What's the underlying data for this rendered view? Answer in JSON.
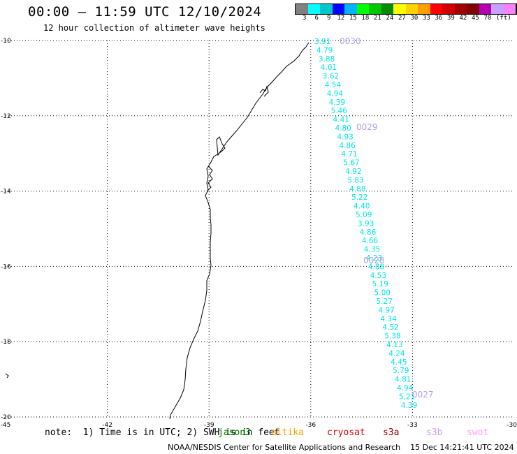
{
  "header": {
    "title": "00:00 – 11:59 UTC 12/10/2024",
    "subtitle": "12 hour collection of altimeter wave heights"
  },
  "legend": {
    "colors": [
      "#808080",
      "#00ffff",
      "#00c8c8",
      "#0000ff",
      "#00b4ff",
      "#00ff00",
      "#00c800",
      "#008c00",
      "#ffff00",
      "#ffd200",
      "#ffa000",
      "#ff0000",
      "#d20000",
      "#a00000",
      "#800000",
      "#b400b4",
      "#c8a0ff",
      "#ff80ff",
      "#000000"
    ],
    "labels": [
      "3",
      "6",
      "9",
      "12",
      "15",
      "18",
      "21",
      "24",
      "27",
      "30",
      "33",
      "36",
      "39",
      "42",
      "45",
      "70"
    ],
    "unit": "(ft)"
  },
  "axes": {
    "lon_ticks": [
      "-45",
      "-42",
      "-39",
      "-36",
      "-33",
      "-30"
    ],
    "lat_ticks": [
      "-10",
      "-12",
      "-14",
      "-16",
      "-18",
      "-20"
    ]
  },
  "track": {
    "color": "#00e6e6",
    "heights": [
      "3.91",
      "4.79",
      "3.88",
      "4.01",
      "3.62",
      "4.54",
      "4.94",
      "4.39",
      "5.46",
      "4.41",
      "4.80",
      "4.93",
      "4.86",
      "4.71",
      "5.67",
      "4.92",
      "5.83",
      "4.88",
      "5.22",
      "4.40",
      "5.09",
      "3.93",
      "4.86",
      "4.66",
      "4.35",
      "4.23",
      "4.88",
      "4.53",
      "5.19",
      "5.00",
      "5.27",
      "4.97",
      "4.34",
      "4.52",
      "5.38",
      "4.13",
      "4.24",
      "4.45",
      "5.79",
      "4.81",
      "4.94",
      "5.21",
      "4.39"
    ],
    "pass_labels": [
      "0030",
      "0029",
      "0028",
      "0027"
    ],
    "pass_color": "#b4a0e6"
  },
  "footer": {
    "note": "note:  1) Time is in UTC; 2) SWH is in feet",
    "satellites": [
      {
        "name": "jason3",
        "color": "#008000"
      },
      {
        "name": "altika",
        "color": "#ffa000"
      },
      {
        "name": "cryosat",
        "color": "#e60000"
      },
      {
        "name": "s3a",
        "color": "#a00000"
      },
      {
        "name": "s3b",
        "color": "#c8a0ff"
      },
      {
        "name": "swot",
        "color": "#ffa0ff"
      }
    ],
    "credit": "NOAA/NESDIS Center for Satellite Applications and Research    15 Dec 14:21:41 UTC 2024"
  }
}
